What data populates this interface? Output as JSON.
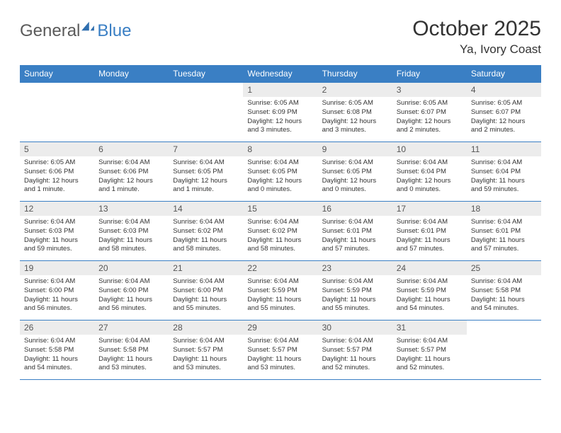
{
  "brand": {
    "part1": "General",
    "part2": "Blue"
  },
  "title": "October 2025",
  "location": "Ya, Ivory Coast",
  "colors": {
    "accent": "#3a7fc4",
    "daybg": "#ececec"
  },
  "weekdays": [
    "Sunday",
    "Monday",
    "Tuesday",
    "Wednesday",
    "Thursday",
    "Friday",
    "Saturday"
  ],
  "weeks": [
    [
      {
        "n": "",
        "t": ""
      },
      {
        "n": "",
        "t": ""
      },
      {
        "n": "",
        "t": ""
      },
      {
        "n": "1",
        "t": "Sunrise: 6:05 AM\nSunset: 6:09 PM\nDaylight: 12 hours and 3 minutes."
      },
      {
        "n": "2",
        "t": "Sunrise: 6:05 AM\nSunset: 6:08 PM\nDaylight: 12 hours and 3 minutes."
      },
      {
        "n": "3",
        "t": "Sunrise: 6:05 AM\nSunset: 6:07 PM\nDaylight: 12 hours and 2 minutes."
      },
      {
        "n": "4",
        "t": "Sunrise: 6:05 AM\nSunset: 6:07 PM\nDaylight: 12 hours and 2 minutes."
      }
    ],
    [
      {
        "n": "5",
        "t": "Sunrise: 6:05 AM\nSunset: 6:06 PM\nDaylight: 12 hours and 1 minute."
      },
      {
        "n": "6",
        "t": "Sunrise: 6:04 AM\nSunset: 6:06 PM\nDaylight: 12 hours and 1 minute."
      },
      {
        "n": "7",
        "t": "Sunrise: 6:04 AM\nSunset: 6:05 PM\nDaylight: 12 hours and 1 minute."
      },
      {
        "n": "8",
        "t": "Sunrise: 6:04 AM\nSunset: 6:05 PM\nDaylight: 12 hours and 0 minutes."
      },
      {
        "n": "9",
        "t": "Sunrise: 6:04 AM\nSunset: 6:05 PM\nDaylight: 12 hours and 0 minutes."
      },
      {
        "n": "10",
        "t": "Sunrise: 6:04 AM\nSunset: 6:04 PM\nDaylight: 12 hours and 0 minutes."
      },
      {
        "n": "11",
        "t": "Sunrise: 6:04 AM\nSunset: 6:04 PM\nDaylight: 11 hours and 59 minutes."
      }
    ],
    [
      {
        "n": "12",
        "t": "Sunrise: 6:04 AM\nSunset: 6:03 PM\nDaylight: 11 hours and 59 minutes."
      },
      {
        "n": "13",
        "t": "Sunrise: 6:04 AM\nSunset: 6:03 PM\nDaylight: 11 hours and 58 minutes."
      },
      {
        "n": "14",
        "t": "Sunrise: 6:04 AM\nSunset: 6:02 PM\nDaylight: 11 hours and 58 minutes."
      },
      {
        "n": "15",
        "t": "Sunrise: 6:04 AM\nSunset: 6:02 PM\nDaylight: 11 hours and 58 minutes."
      },
      {
        "n": "16",
        "t": "Sunrise: 6:04 AM\nSunset: 6:01 PM\nDaylight: 11 hours and 57 minutes."
      },
      {
        "n": "17",
        "t": "Sunrise: 6:04 AM\nSunset: 6:01 PM\nDaylight: 11 hours and 57 minutes."
      },
      {
        "n": "18",
        "t": "Sunrise: 6:04 AM\nSunset: 6:01 PM\nDaylight: 11 hours and 57 minutes."
      }
    ],
    [
      {
        "n": "19",
        "t": "Sunrise: 6:04 AM\nSunset: 6:00 PM\nDaylight: 11 hours and 56 minutes."
      },
      {
        "n": "20",
        "t": "Sunrise: 6:04 AM\nSunset: 6:00 PM\nDaylight: 11 hours and 56 minutes."
      },
      {
        "n": "21",
        "t": "Sunrise: 6:04 AM\nSunset: 6:00 PM\nDaylight: 11 hours and 55 minutes."
      },
      {
        "n": "22",
        "t": "Sunrise: 6:04 AM\nSunset: 5:59 PM\nDaylight: 11 hours and 55 minutes."
      },
      {
        "n": "23",
        "t": "Sunrise: 6:04 AM\nSunset: 5:59 PM\nDaylight: 11 hours and 55 minutes."
      },
      {
        "n": "24",
        "t": "Sunrise: 6:04 AM\nSunset: 5:59 PM\nDaylight: 11 hours and 54 minutes."
      },
      {
        "n": "25",
        "t": "Sunrise: 6:04 AM\nSunset: 5:58 PM\nDaylight: 11 hours and 54 minutes."
      }
    ],
    [
      {
        "n": "26",
        "t": "Sunrise: 6:04 AM\nSunset: 5:58 PM\nDaylight: 11 hours and 54 minutes."
      },
      {
        "n": "27",
        "t": "Sunrise: 6:04 AM\nSunset: 5:58 PM\nDaylight: 11 hours and 53 minutes."
      },
      {
        "n": "28",
        "t": "Sunrise: 6:04 AM\nSunset: 5:57 PM\nDaylight: 11 hours and 53 minutes."
      },
      {
        "n": "29",
        "t": "Sunrise: 6:04 AM\nSunset: 5:57 PM\nDaylight: 11 hours and 53 minutes."
      },
      {
        "n": "30",
        "t": "Sunrise: 6:04 AM\nSunset: 5:57 PM\nDaylight: 11 hours and 52 minutes."
      },
      {
        "n": "31",
        "t": "Sunrise: 6:04 AM\nSunset: 5:57 PM\nDaylight: 11 hours and 52 minutes."
      },
      {
        "n": "",
        "t": ""
      }
    ]
  ]
}
